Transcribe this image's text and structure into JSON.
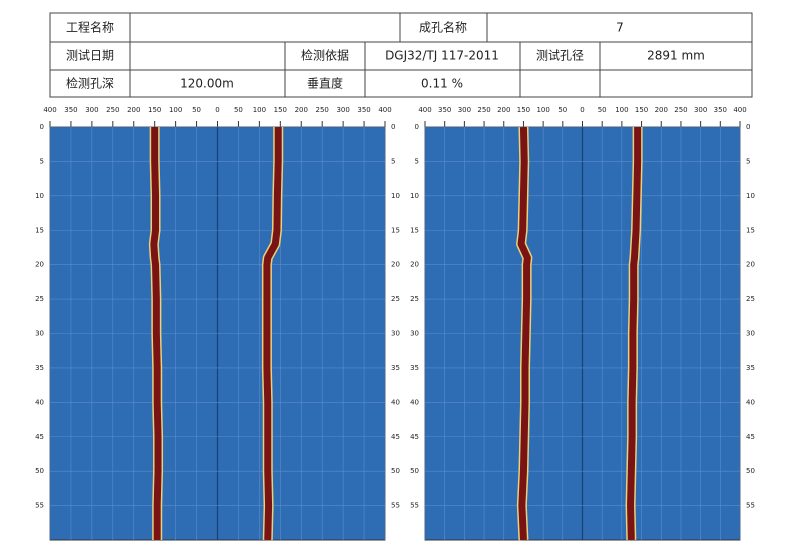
{
  "header": {
    "project_name_label": "工程名称",
    "hole_name_label": "成孔名称",
    "hole_name": "7",
    "test_date_label": "测试日期",
    "basis_label": "检测依据",
    "basis": "DGJ32/TJ 117-2011",
    "diameter_label": "测试孔径",
    "diameter": "2891 mm",
    "depth_label": "检测孔深",
    "depth": "120.00m",
    "verticality_label": "垂直度",
    "verticality": "0.11 %"
  },
  "chart_data": [
    {
      "type": "line",
      "background": "#2e6db4",
      "grid": true,
      "xlim": [
        -400,
        400
      ],
      "xticks": [
        {
          "value": -400,
          "label": "400"
        },
        {
          "value": -350,
          "label": "350"
        },
        {
          "value": -300,
          "label": "300"
        },
        {
          "value": -250,
          "label": "250"
        },
        {
          "value": -200,
          "label": "200"
        },
        {
          "value": -150,
          "label": "150"
        },
        {
          "value": -100,
          "label": "100"
        },
        {
          "value": -50,
          "label": "50"
        },
        0,
        50,
        100,
        150,
        200,
        250,
        300,
        350,
        400
      ],
      "ylim": [
        0,
        60
      ],
      "yticks": [
        0,
        5,
        10,
        15,
        20,
        25,
        30,
        35,
        40,
        45,
        50,
        55
      ],
      "depth": [
        0,
        5,
        10,
        15,
        17,
        19,
        20,
        25,
        30,
        35,
        40,
        45,
        50,
        55,
        60
      ],
      "series": [
        {
          "color": "#7a1414",
          "values": [
            -150,
            -150,
            -148,
            -148,
            -152,
            -150,
            -148,
            -146,
            -146,
            -144,
            -144,
            -142,
            -142,
            -144,
            -144
          ]
        },
        {
          "color": "#7a1414",
          "values": [
            145,
            145,
            143,
            142,
            138,
            120,
            118,
            118,
            118,
            118,
            120,
            120,
            120,
            122,
            120
          ]
        }
      ]
    },
    {
      "type": "line",
      "background": "#2e6db4",
      "grid": true,
      "xlim": [
        -400,
        400
      ],
      "xticks": [
        {
          "value": -400,
          "label": "400"
        },
        {
          "value": -350,
          "label": "350"
        },
        {
          "value": -300,
          "label": "300"
        },
        {
          "value": -250,
          "label": "250"
        },
        {
          "value": -200,
          "label": "200"
        },
        {
          "value": -150,
          "label": "150"
        },
        {
          "value": -100,
          "label": "100"
        },
        {
          "value": -50,
          "label": "50"
        },
        0,
        50,
        100,
        150,
        200,
        250,
        300,
        350,
        400
      ],
      "ylim": [
        0,
        60
      ],
      "yticks": [
        0,
        5,
        10,
        15,
        20,
        25,
        30,
        35,
        40,
        45,
        50,
        55
      ],
      "depth": [
        0,
        5,
        10,
        15,
        17,
        19,
        20,
        25,
        30,
        35,
        40,
        45,
        50,
        55,
        60
      ],
      "series": [
        {
          "color": "#7a1414",
          "values": [
            -150,
            -148,
            -150,
            -152,
            -156,
            -140,
            -142,
            -142,
            -144,
            -146,
            -146,
            -148,
            -150,
            -154,
            -150
          ]
        },
        {
          "color": "#7a1414",
          "values": [
            140,
            140,
            138,
            136,
            134,
            132,
            130,
            130,
            128,
            128,
            126,
            126,
            124,
            122,
            124
          ]
        }
      ]
    }
  ]
}
